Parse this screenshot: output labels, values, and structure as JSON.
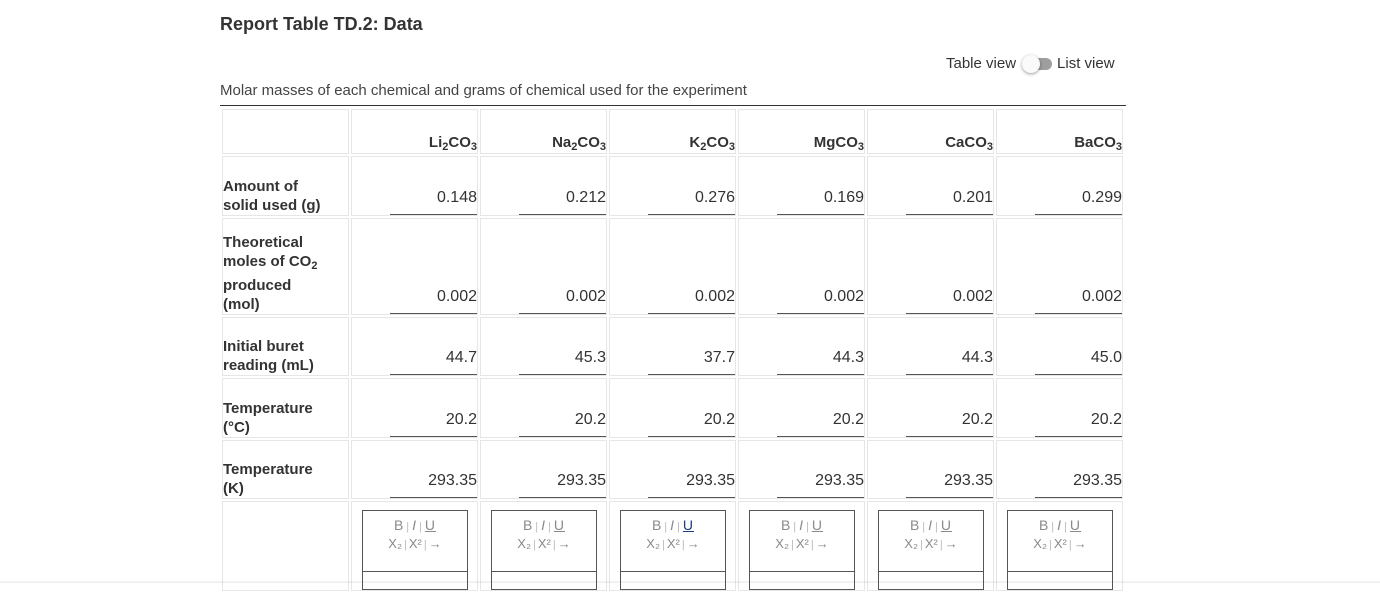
{
  "title": "Report Table TD.2: Data",
  "view_toggle": {
    "left_label": "Table view",
    "right_label": "List view"
  },
  "caption": "Molar masses of each chemical and grams of chemical used for the experiment",
  "columns": [
    {
      "base": "Li",
      "sub1": "2",
      "mid": "CO",
      "sub2": "3"
    },
    {
      "base": "Na",
      "sub1": "2",
      "mid": "CO",
      "sub2": "3"
    },
    {
      "base": "K",
      "sub1": "2",
      "mid": "CO",
      "sub2": "3"
    },
    {
      "base": "Mg",
      "sub1": "",
      "mid": "CO",
      "sub2": "3"
    },
    {
      "base": "Ca",
      "sub1": "",
      "mid": "CO",
      "sub2": "3"
    },
    {
      "base": "Ba",
      "sub1": "",
      "mid": "CO",
      "sub2": "3"
    }
  ],
  "rows": [
    {
      "label_a": "Amount of",
      "label_b": "solid used (g)",
      "values": [
        "0.148",
        "0.212",
        "0.276",
        "0.169",
        "0.201",
        "0.299"
      ]
    },
    {
      "label_a": "Theoretical",
      "label_b": "moles of CO",
      "label_sub": "2",
      "label_c": "produced",
      "label_d": "(mol)",
      "values": [
        "0.002",
        "0.002",
        "0.002",
        "0.002",
        "0.002",
        "0.002"
      ]
    },
    {
      "label_a": "Initial buret",
      "label_b": "reading (mL)",
      "values": [
        "44.7",
        "45.3",
        "37.7",
        "44.3",
        "44.3",
        "45.0"
      ]
    },
    {
      "label_a": "Temperature",
      "label_b": "(°C)",
      "values": [
        "20.2",
        "20.2",
        "20.2",
        "20.2",
        "20.2",
        "20.2"
      ]
    },
    {
      "label_a": "Temperature",
      "label_b": "(K)",
      "values": [
        "293.35",
        "293.35",
        "293.35",
        "293.35",
        "293.35",
        "293.35"
      ]
    }
  ],
  "editor_toolbar": {
    "bold": "B",
    "italic": "I",
    "underline": "U",
    "subscript": "X₂",
    "superscript": "X²",
    "arrow": "→",
    "separator": "|"
  },
  "colors": {
    "underline_active": "#1a3d7c",
    "toolbar_text": "#8a8a8a",
    "border": "#e6e6e6"
  }
}
